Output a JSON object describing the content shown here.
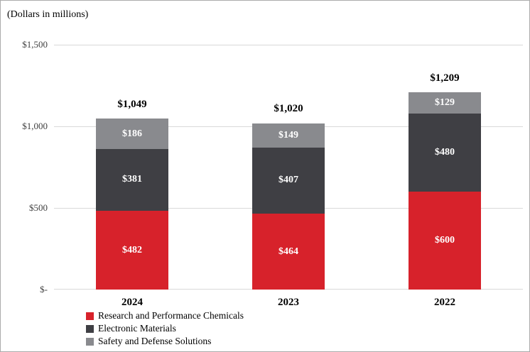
{
  "chart_data": {
    "type": "bar",
    "stacked": true,
    "units_label": "(Dollars in millions)",
    "categories": [
      "2024",
      "2023",
      "2022"
    ],
    "series": [
      {
        "name": "Research and Performance Chemicals",
        "color": "#d7222b",
        "values": [
          482,
          464,
          600
        ],
        "labels": [
          "$482",
          "$464",
          "$600"
        ]
      },
      {
        "name": "Electronic Materials",
        "color": "#3f3f44",
        "values": [
          381,
          407,
          480
        ],
        "labels": [
          "$381",
          "$407",
          "$480"
        ]
      },
      {
        "name": "Safety and Defense Solutions",
        "color": "#898a8e",
        "values": [
          186,
          149,
          129
        ],
        "labels": [
          "$186",
          "$149",
          "$129"
        ]
      }
    ],
    "totals": [
      1049,
      1020,
      1209
    ],
    "total_labels": [
      "$1,049",
      "$1,020",
      "$1,209"
    ],
    "y_ticks": [
      {
        "value": 1500,
        "label": "$1,500"
      },
      {
        "value": 1000,
        "label": "$1,000"
      },
      {
        "value": 500,
        "label": "$500"
      },
      {
        "value": 0,
        "label": "$-"
      }
    ],
    "ylim": [
      0,
      1500
    ],
    "grid": true,
    "legend_position": "bottom-left"
  }
}
